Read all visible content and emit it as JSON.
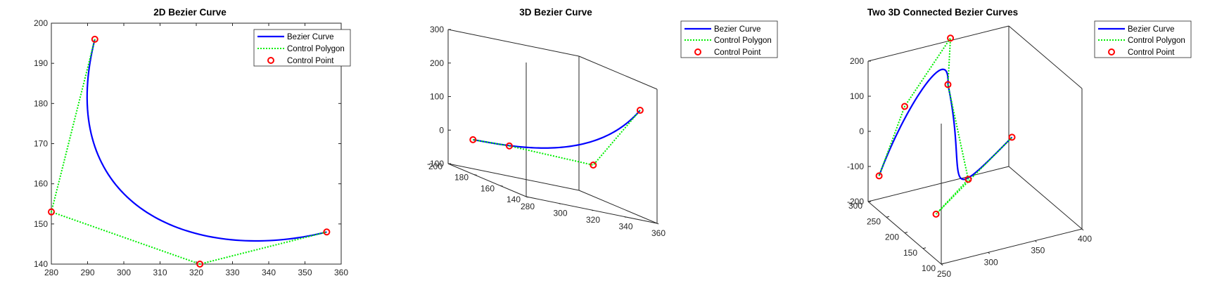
{
  "chart_data": [
    {
      "type": "line",
      "title": "2D Bezier Curve",
      "xlim": [
        280,
        360
      ],
      "ylim": [
        140,
        200
      ],
      "xticks": [
        280,
        290,
        300,
        310,
        320,
        330,
        340,
        350,
        360
      ],
      "yticks": [
        140,
        150,
        160,
        170,
        180,
        190,
        200
      ],
      "control_points": [
        [
          292,
          196
        ],
        [
          280,
          153
        ],
        [
          321,
          140
        ],
        [
          356,
          148
        ]
      ],
      "legend": {
        "placement": "top-right",
        "entries": [
          "Bezier Curve",
          "Control Polygon",
          "Control Point"
        ]
      },
      "colors": {
        "curve": "#0000ff",
        "polygon": "#00ee00",
        "point": "#ff0000"
      }
    },
    {
      "type": "line",
      "title": "3D Bezier Curve",
      "xlim": [
        280,
        360
      ],
      "ylim": [
        140,
        200
      ],
      "zlim": [
        -100,
        300
      ],
      "xticks": [
        280,
        300,
        320,
        340,
        360
      ],
      "yticks": [
        140,
        160,
        180,
        200
      ],
      "zticks": [
        -100,
        0,
        100,
        200,
        300
      ],
      "control_points": [
        [
          292,
          196,
          -10
        ],
        [
          280,
          153,
          30
        ],
        [
          321,
          140,
          35
        ],
        [
          356,
          148,
          220
        ]
      ],
      "legend": {
        "placement": "outside-top-right",
        "entries": [
          "Bezier Curve",
          "Control Polygon",
          "Control Point"
        ]
      },
      "colors": {
        "curve": "#0000ff",
        "polygon": "#00ee00",
        "point": "#ff0000"
      }
    },
    {
      "type": "line",
      "title": "Two 3D Connected Bezier Curves",
      "xlim": [
        250,
        400
      ],
      "ylim": [
        100,
        300
      ],
      "zlim": [
        -200,
        200
      ],
      "xticks": [
        250,
        300,
        350,
        400
      ],
      "yticks": [
        100,
        150,
        200,
        250,
        300
      ],
      "zticks": [
        -200,
        -100,
        0,
        100,
        200
      ],
      "segments": [
        [
          [
            250,
            270,
            -100
          ],
          [
            250,
            200,
            160
          ],
          [
            330,
            280,
            230
          ],
          [
            300,
            210,
            180
          ]
        ],
        [
          [
            300,
            210,
            180
          ],
          [
            310,
            180,
            -70
          ],
          [
            260,
            140,
            -100
          ],
          [
            380,
            240,
            -50
          ]
        ]
      ],
      "legend": {
        "placement": "outside-top-right",
        "entries": [
          "Bezier Curve",
          "Control Polygon",
          "Control Point"
        ]
      },
      "colors": {
        "curve": "#0000ff",
        "polygon": "#00ee00",
        "point": "#ff0000"
      }
    }
  ]
}
